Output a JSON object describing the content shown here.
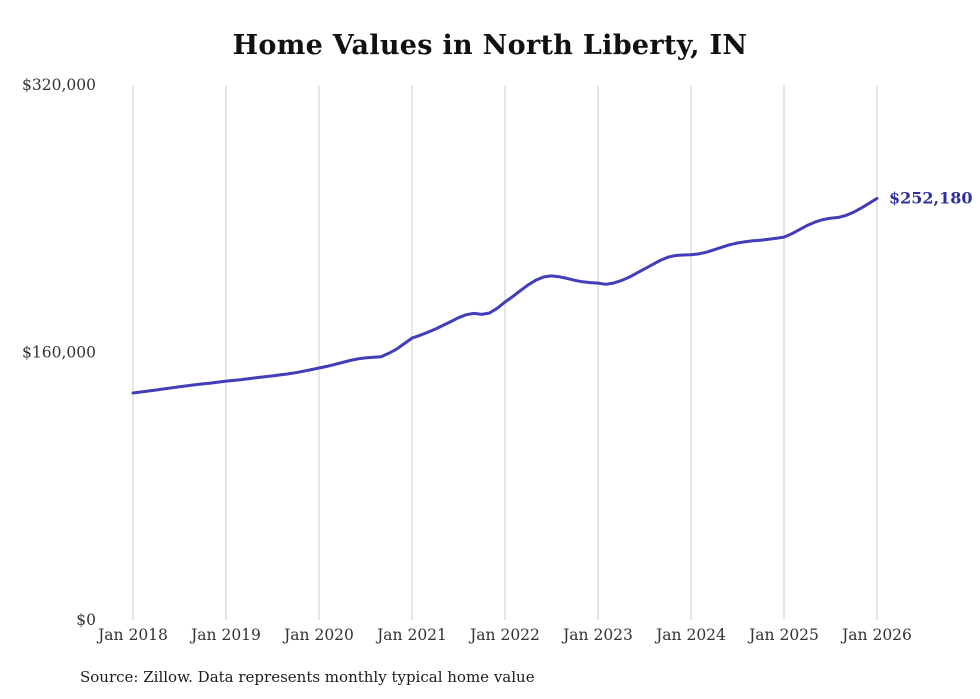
{
  "chart_data": {
    "type": "line",
    "title": "Home Values in North Liberty, IN",
    "xlabel": "",
    "ylabel": "",
    "frequency": "monthly",
    "x_ticks": [
      "Jan 2018",
      "Jan 2019",
      "Jan 2020",
      "Jan 2021",
      "Jan 2022",
      "Jan 2023",
      "Jan 2024",
      "Jan 2025",
      "Jan 2026"
    ],
    "y_ticks": [
      {
        "label": "$0",
        "value": 0
      },
      {
        "label": "$160,000",
        "value": 160000
      },
      {
        "label": "$320,000",
        "value": 320000
      }
    ],
    "ylim": [
      0,
      320000
    ],
    "grid": "vertical-only",
    "legend": "none",
    "series_name": "Typical home value",
    "values": [
      135800,
      136400,
      137000,
      137600,
      138200,
      138900,
      139500,
      140100,
      140700,
      141200,
      141700,
      142300,
      142900,
      143300,
      143800,
      144400,
      145000,
      145500,
      146000,
      146600,
      147200,
      147900,
      148800,
      149800,
      150700,
      151700,
      152800,
      154000,
      155200,
      156200,
      156800,
      157100,
      157400,
      159500,
      162000,
      165300,
      168600,
      170200,
      172000,
      174000,
      176200,
      178500,
      180800,
      182600,
      183400,
      182800,
      183600,
      186500,
      190200,
      193500,
      197000,
      200500,
      203300,
      205200,
      205800,
      205300,
      204300,
      203200,
      202300,
      201800,
      201500,
      200800,
      201500,
      203000,
      205000,
      207500,
      210000,
      212500,
      215000,
      217000,
      218000,
      218300,
      218500,
      219000,
      220000,
      221500,
      223000,
      224500,
      225500,
      226300,
      226800,
      227200,
      227700,
      228300,
      229000,
      231000,
      233500,
      236000,
      238000,
      239500,
      240300,
      240800,
      242000,
      244000,
      246500,
      249300,
      252180
    ],
    "end_label": "$252,180",
    "line_color": "#423db8",
    "end_label_color": "#2d2f9a",
    "grid_color": "#cccccc"
  },
  "source": "Source: Zillow. Data represents monthly typical home value"
}
